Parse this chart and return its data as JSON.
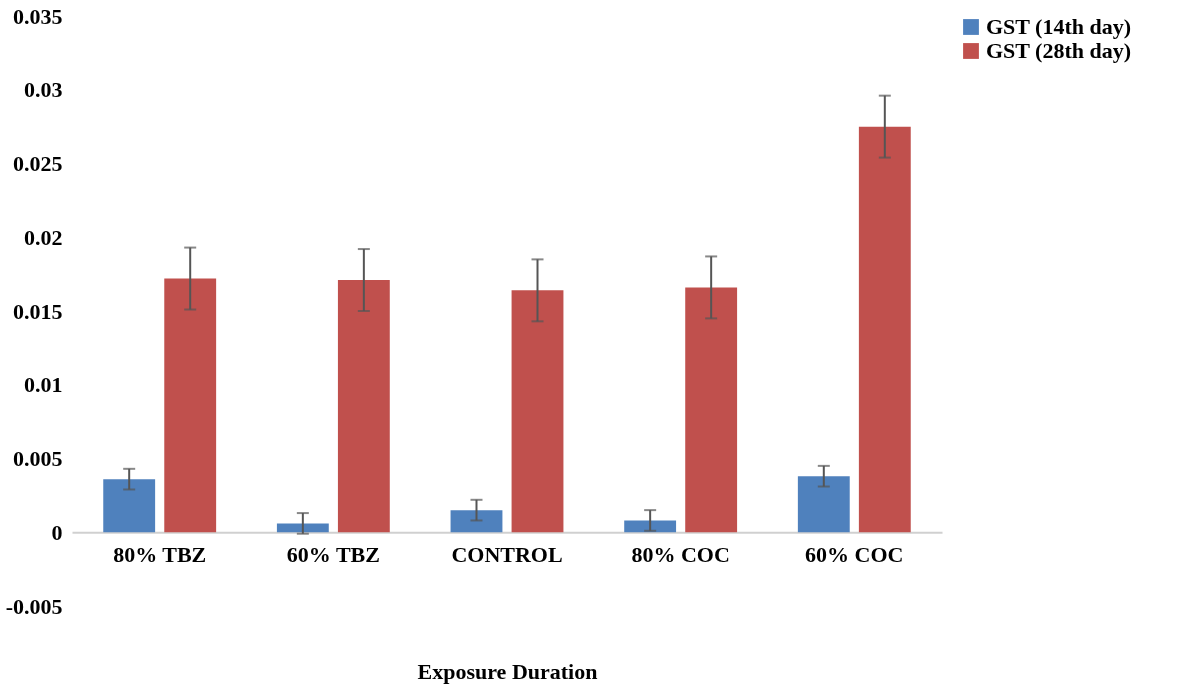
{
  "chart_data": {
    "type": "bar",
    "xlabel": "Exposure Duration",
    "categories": [
      "80% TBZ",
      "60% TBZ",
      "CONTROL",
      "80% COC",
      "60% COC"
    ],
    "series": [
      {
        "name": "GST (14th day)",
        "color": "#4f81bd",
        "values": [
          0.0036,
          0.0006,
          0.0015,
          0.0008,
          0.0038
        ],
        "errors": [
          0.0007,
          0.0007,
          0.0007,
          0.0007,
          0.0007
        ]
      },
      {
        "name": "GST (28th day)",
        "color": "#c0504d",
        "values": [
          0.0172,
          0.0171,
          0.0164,
          0.0166,
          0.0275
        ],
        "errors": [
          0.0021,
          0.0021,
          0.0021,
          0.0021,
          0.0021
        ]
      }
    ],
    "ylim": [
      -0.005,
      0.035
    ],
    "yticks": [
      -0.005,
      0,
      0.005,
      0.01,
      0.015,
      0.02,
      0.025,
      0.03,
      0.035
    ],
    "grid": false,
    "legend": "right"
  }
}
